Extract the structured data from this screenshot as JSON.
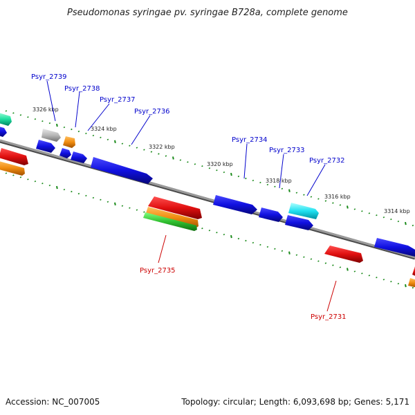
{
  "title": "Pseudomonas syringae pv. syringae B728a, complete genome",
  "footer": {
    "accession": "Accession: NC_007005",
    "summary": "Topology: circular; Length: 6,093,698 bp; Genes: 5,171"
  },
  "colors": {
    "backbone": "#808080",
    "tick": "#1a8a1a",
    "blue_gene": "#1010e0",
    "red_gene": "#e01010",
    "orange_gene": "#f08c10",
    "green_gene": "#30c030",
    "cyan_gene": "#20e0f0",
    "gray_gene": "#b8b8b8",
    "teal_gene": "#20e0a0",
    "blue_label": "#0000cc",
    "red_label": "#cc0000"
  },
  "ticks": [
    {
      "label": "3326 kbp"
    },
    {
      "label": "3324 kbp"
    },
    {
      "label": "3322 kbp"
    },
    {
      "label": "3320 kbp"
    },
    {
      "label": "3318 kbp"
    },
    {
      "label": "3316 kbp"
    },
    {
      "label": "3314 kbp"
    }
  ],
  "genes": [
    {
      "label": "Psyr_2739",
      "color": "blue_label"
    },
    {
      "label": "Psyr_2738",
      "color": "blue_label"
    },
    {
      "label": "Psyr_2737",
      "color": "blue_label"
    },
    {
      "label": "Psyr_2736",
      "color": "blue_label"
    },
    {
      "label": "Psyr_2734",
      "color": "blue_label"
    },
    {
      "label": "Psyr_2733",
      "color": "blue_label"
    },
    {
      "label": "Psyr_2732",
      "color": "blue_label"
    },
    {
      "label": "Psyr_2735",
      "color": "red_label"
    },
    {
      "label": "Psyr_2731",
      "color": "red_label"
    }
  ]
}
